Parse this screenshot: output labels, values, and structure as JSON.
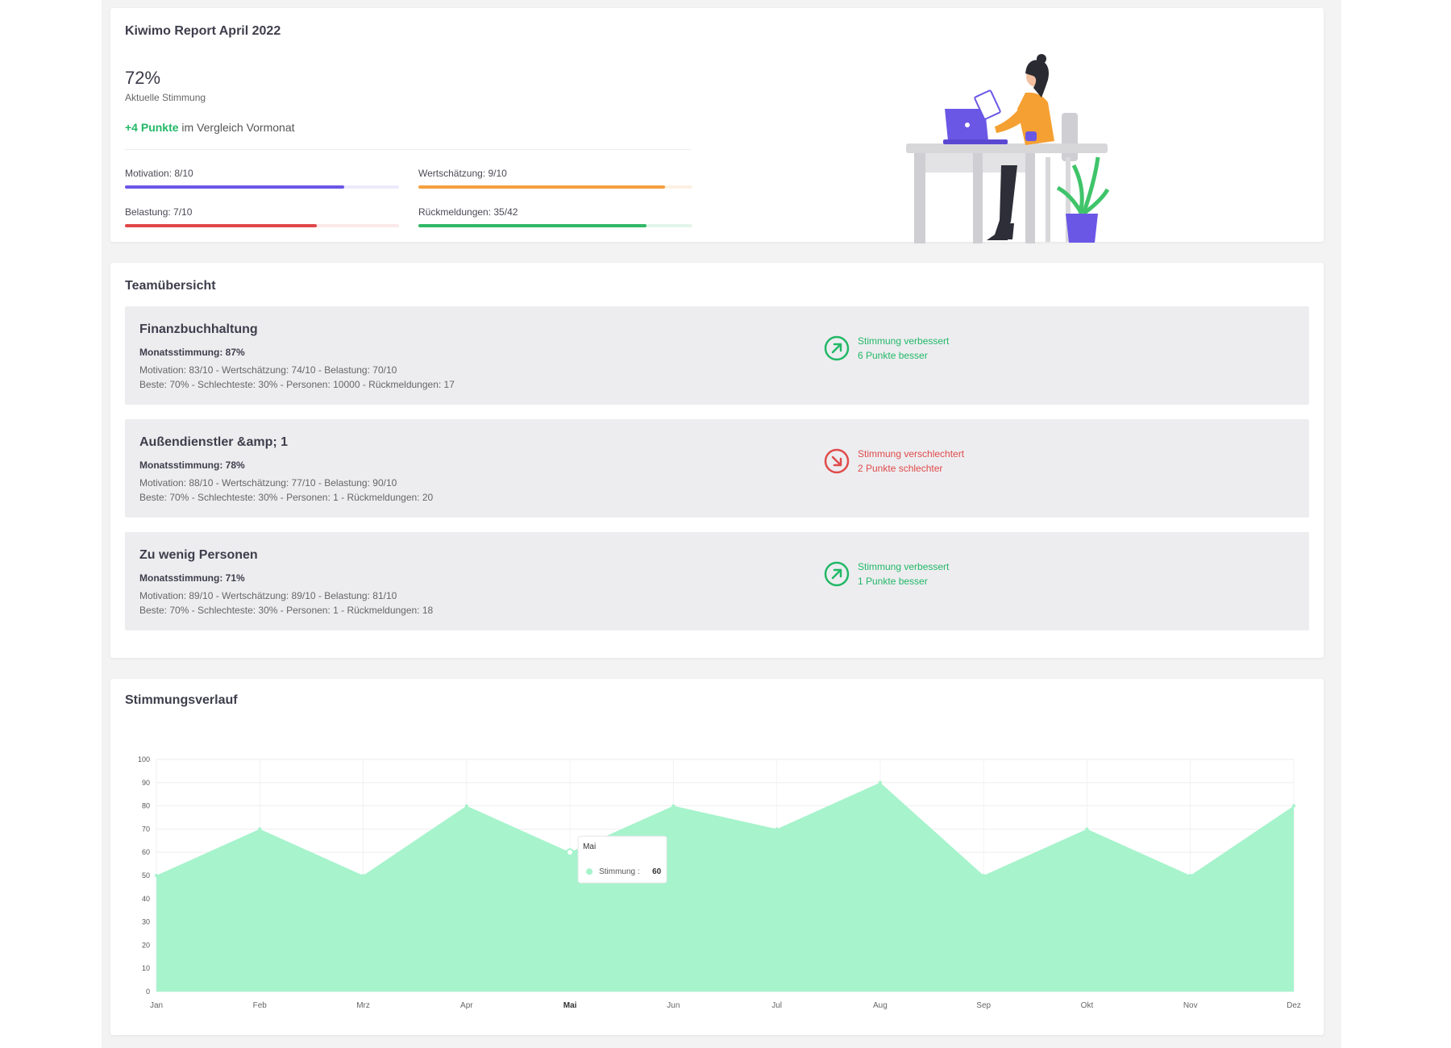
{
  "report": {
    "title": "Kiwimo Report April 2022",
    "mood_value": "72%",
    "mood_label": "Aktuelle Stimmung",
    "compare_points": "+4 Punkte",
    "compare_text": " im Vergleich Vormonat",
    "metrics": [
      {
        "label": "Motivation: 8/10",
        "fill": 0.8,
        "color": "#6a57e6",
        "track": "#ecebfb"
      },
      {
        "label": "Wertschätzung: 9/10",
        "fill": 0.9,
        "color": "#f5a040",
        "track": "#fdf1e4"
      },
      {
        "label": "Belastung: 7/10",
        "fill": 0.7,
        "color": "#e0474a",
        "track": "#fbe8e8"
      },
      {
        "label": "Rückmeldungen: 35/42",
        "fill": 0.8333,
        "color": "#2fb866",
        "track": "#e3f5ea"
      }
    ]
  },
  "team": {
    "title": "Teamübersicht",
    "rows": [
      {
        "name": "Finanzbuchhaltung",
        "month": "Monatsstimmung: 87%",
        "line1": "Motivation: 83/10 - Wertschätzung: 74/10 - Belastung: 70/10",
        "line2": "Beste: 70% - Schlechteste: 30% - Personen: 10000 - Rückmeldungen: 17",
        "trend_title": "Stimmung verbessert",
        "trend_sub": "6 Punkte besser",
        "trend": "up"
      },
      {
        "name": "Außendienstler &amp; 1",
        "month": "Monatsstimmung: 78%",
        "line1": "Motivation: 88/10 - Wertschätzung: 77/10 - Belastung: 90/10",
        "line2": "Beste: 70% - Schlechteste: 30% - Personen: 1 - Rückmeldungen: 20",
        "trend_title": "Stimmung verschlechtert",
        "trend_sub": "2 Punkte schlechter",
        "trend": "down"
      },
      {
        "name": "Zu wenig Personen",
        "month": "Monatsstimmung: 71%",
        "line1": "Motivation: 89/10 - Wertschätzung: 89/10 - Belastung: 81/10",
        "line2": "Beste: 70% - Schlechteste: 30% - Personen: 1 - Rückmeldungen: 18",
        "trend_title": "Stimmung verbessert",
        "trend_sub": "1 Punkte besser",
        "trend": "up"
      }
    ]
  },
  "chart_section": {
    "title": "Stimmungsverlauf"
  },
  "chart_data": {
    "type": "area",
    "categories": [
      "Jan",
      "Feb",
      "Mrz",
      "Apr",
      "Mai",
      "Jun",
      "Jul",
      "Aug",
      "Sep",
      "Okt",
      "Nov",
      "Dez"
    ],
    "series": [
      {
        "name": "Stimmung",
        "values": [
          50,
          70,
          50,
          80,
          60,
          80,
          70,
          90,
          50,
          70,
          50,
          80
        ]
      }
    ],
    "ylim": [
      0,
      100
    ],
    "yticks": [
      0,
      10,
      20,
      30,
      40,
      50,
      60,
      70,
      80,
      90,
      100
    ],
    "grid": true,
    "fill_color": "#a6f3cc",
    "tooltip": {
      "category": "Mai",
      "label": "Stimmung :",
      "value": "60"
    },
    "highlight_category": "Mai"
  },
  "colors": {
    "good": "#22b866",
    "bad": "#e04b4b",
    "accent": "#6a57e6"
  }
}
